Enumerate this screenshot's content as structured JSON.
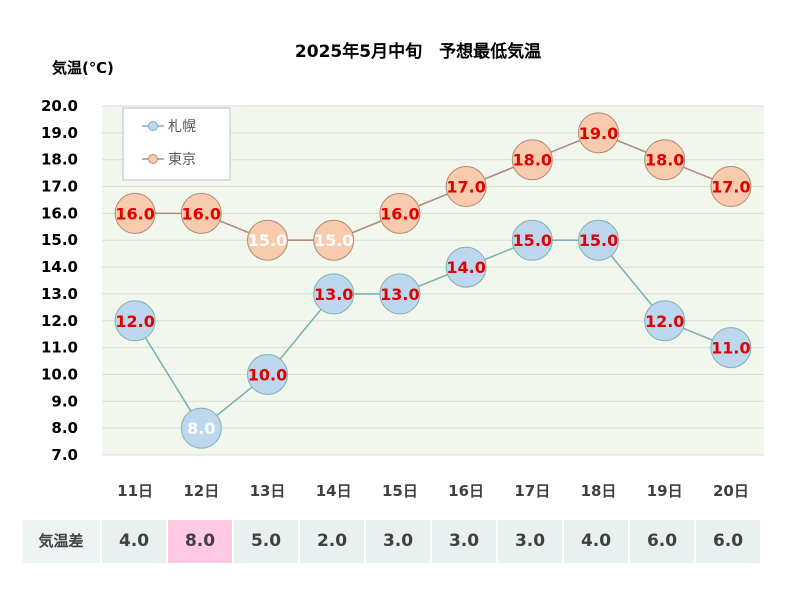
{
  "chart_data": {
    "type": "line",
    "title": "2025年5月中旬　予想最低気温",
    "ylabel": "気温(℃)",
    "categories": [
      "11日",
      "12日",
      "13日",
      "14日",
      "15日",
      "16日",
      "17日",
      "18日",
      "19日",
      "20日"
    ],
    "ylim": [
      7.0,
      20.0
    ],
    "yticks": [
      "7.0",
      "8.0",
      "9.0",
      "10.0",
      "11.0",
      "12.0",
      "13.0",
      "14.0",
      "15.0",
      "16.0",
      "17.0",
      "18.0",
      "19.0",
      "20.0"
    ],
    "grid": true,
    "legend_position": "top-left",
    "series": [
      {
        "name": "札幌",
        "values": [
          12.0,
          8.0,
          10.0,
          13.0,
          13.0,
          14.0,
          15.0,
          15.0,
          12.0,
          11.0
        ],
        "labels": [
          "12.0",
          "8.0",
          "10.0",
          "13.0",
          "13.0",
          "14.0",
          "15.0",
          "15.0",
          "12.0",
          "11.0"
        ],
        "color": "#bdd7ee",
        "line_color": "#7fb2b0"
      },
      {
        "name": "東京",
        "values": [
          16.0,
          16.0,
          15.0,
          15.0,
          16.0,
          17.0,
          18.0,
          19.0,
          18.0,
          17.0
        ],
        "labels": [
          "16.0",
          "16.0",
          "15.0",
          "15.0",
          "16.0",
          "17.0",
          "18.0",
          "19.0",
          "18.0",
          "17.0"
        ],
        "color": "#f8cbad",
        "line_color": "#b08a7a"
      }
    ],
    "plot_background": "#f2f7ee"
  },
  "difference_table": {
    "header": "気温差",
    "values": [
      "4.0",
      "8.0",
      "5.0",
      "2.0",
      "3.0",
      "3.0",
      "3.0",
      "4.0",
      "6.0",
      "6.0"
    ],
    "highlight_color": "#ffc9e4"
  }
}
